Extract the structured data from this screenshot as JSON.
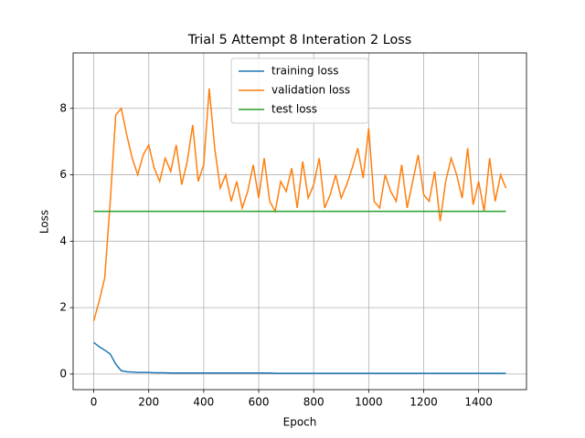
{
  "chart_data": {
    "type": "line",
    "title": "Trial 5 Attempt 8 Interation 2 Loss",
    "x_label": "Epoch",
    "y_label": "Loss",
    "x": [
      0,
      20,
      40,
      60,
      80,
      100,
      120,
      140,
      160,
      180,
      200,
      220,
      240,
      260,
      280,
      300,
      320,
      340,
      360,
      380,
      400,
      420,
      440,
      460,
      480,
      500,
      520,
      540,
      560,
      580,
      600,
      620,
      640,
      660,
      680,
      700,
      720,
      740,
      760,
      780,
      800,
      820,
      840,
      860,
      880,
      900,
      920,
      940,
      960,
      980,
      1000,
      1020,
      1040,
      1060,
      1080,
      1100,
      1120,
      1140,
      1160,
      1180,
      1200,
      1220,
      1240,
      1260,
      1280,
      1300,
      1320,
      1340,
      1360,
      1380,
      1400,
      1420,
      1440,
      1460,
      1480,
      1499
    ],
    "series": [
      {
        "name": "training loss",
        "color": "#1f77b4",
        "values": [
          0.95,
          0.82,
          0.72,
          0.6,
          0.3,
          0.1,
          0.07,
          0.06,
          0.05,
          0.05,
          0.05,
          0.04,
          0.04,
          0.04,
          0.03,
          0.03,
          0.03,
          0.03,
          0.03,
          0.03,
          0.03,
          0.03,
          0.03,
          0.03,
          0.03,
          0.03,
          0.03,
          0.03,
          0.03,
          0.03,
          0.03,
          0.03,
          0.03,
          0.02,
          0.02,
          0.02,
          0.02,
          0.02,
          0.02,
          0.02,
          0.02,
          0.02,
          0.02,
          0.02,
          0.02,
          0.02,
          0.02,
          0.02,
          0.02,
          0.02,
          0.02,
          0.02,
          0.02,
          0.02,
          0.02,
          0.02,
          0.02,
          0.02,
          0.02,
          0.02,
          0.02,
          0.02,
          0.02,
          0.02,
          0.02,
          0.02,
          0.02,
          0.02,
          0.02,
          0.02,
          0.02,
          0.02,
          0.02,
          0.02,
          0.02,
          0.02
        ]
      },
      {
        "name": "validation loss",
        "color": "#ff7f0e",
        "values": [
          1.6,
          2.2,
          2.9,
          5.2,
          7.8,
          8.0,
          7.2,
          6.5,
          6.0,
          6.6,
          6.9,
          6.2,
          5.8,
          6.5,
          6.1,
          6.9,
          5.7,
          6.4,
          7.5,
          5.8,
          6.3,
          8.6,
          6.8,
          5.6,
          6.0,
          5.2,
          5.8,
          5.0,
          5.5,
          6.3,
          5.3,
          6.5,
          5.2,
          4.9,
          5.8,
          5.5,
          6.2,
          5.0,
          6.4,
          5.3,
          5.7,
          6.5,
          5.0,
          5.4,
          6.0,
          5.3,
          5.7,
          6.2,
          6.8,
          5.9,
          7.4,
          5.2,
          5.0,
          6.0,
          5.5,
          5.2,
          6.3,
          5.0,
          5.8,
          6.6,
          5.4,
          5.2,
          6.1,
          4.6,
          5.8,
          6.5,
          6.0,
          5.3,
          6.8,
          5.1,
          5.8,
          4.9,
          6.5,
          5.2,
          6.0,
          5.6
        ]
      },
      {
        "name": "test loss",
        "color": "#2ca02c",
        "values": [
          4.9,
          4.9,
          4.9,
          4.9,
          4.9,
          4.9,
          4.9,
          4.9,
          4.9,
          4.9,
          4.9,
          4.9,
          4.9,
          4.9,
          4.9,
          4.9,
          4.9,
          4.9,
          4.9,
          4.9,
          4.9,
          4.9,
          4.9,
          4.9,
          4.9,
          4.9,
          4.9,
          4.9,
          4.9,
          4.9,
          4.9,
          4.9,
          4.9,
          4.9,
          4.9,
          4.9,
          4.9,
          4.9,
          4.9,
          4.9,
          4.9,
          4.9,
          4.9,
          4.9,
          4.9,
          4.9,
          4.9,
          4.9,
          4.9,
          4.9,
          4.9,
          4.9,
          4.9,
          4.9,
          4.9,
          4.9,
          4.9,
          4.9,
          4.9,
          4.9,
          4.9,
          4.9,
          4.9,
          4.9,
          4.9,
          4.9,
          4.9,
          4.9,
          4.9,
          4.9,
          4.9,
          4.9,
          4.9,
          4.9,
          4.9,
          4.9
        ]
      }
    ],
    "xlim": [
      -75,
      1574
    ],
    "ylim": [
      -0.47,
      9.67
    ],
    "xticks": [
      0,
      200,
      400,
      600,
      800,
      1000,
      1200,
      1400
    ],
    "yticks": [
      0,
      2,
      4,
      6,
      8
    ],
    "grid": true,
    "legend": "upper center"
  }
}
